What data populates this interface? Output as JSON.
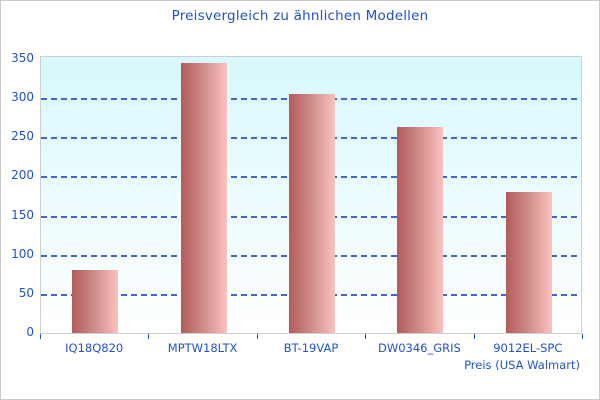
{
  "chart_data": {
    "type": "bar",
    "title": "Preisvergleich zu ähnlichen Modellen",
    "xlabel": "Preis (USA Walmart)",
    "ylabel": "",
    "categories": [
      "IQ18Q820",
      "MPTW18LTX",
      "BT-19VAP",
      "DW0346_GRIS",
      "9012EL-SPC"
    ],
    "values": [
      80,
      345,
      305,
      263,
      180
    ],
    "ylim": [
      0,
      350
    ],
    "ytick_step": 50,
    "grid": "horizontal-dashed",
    "legend": "none",
    "colors": {
      "text": "#2153c8",
      "gridline": "#3a5ec8",
      "bar_gradient_left": "#b25c5a",
      "bar_gradient_right": "#fac2bf",
      "plot_bg_top": "#d7f8fc",
      "plot_bg_bottom": "#ffffff",
      "frame_border": "#c9c9c9"
    }
  }
}
